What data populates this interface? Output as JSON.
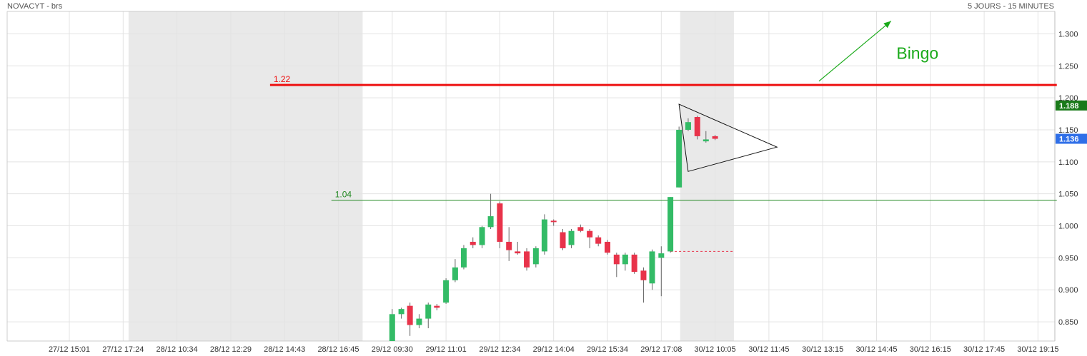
{
  "header": {
    "instrument": "NOVACYT - brs",
    "period": "5 JOURS - 15 MINUTES"
  },
  "colors": {
    "up": "#33bb66",
    "down": "#e8334a",
    "grid": "#e3e3e3",
    "session_shade": "#e9e9e9",
    "resistance": "#ee1111",
    "support": "#228822",
    "bingo": "#1aaa1a",
    "last_badge": "#2f6fe8",
    "ref_badge": "#1a7a1a",
    "triangle": "#111111"
  },
  "chart_data": {
    "type": "candlestick",
    "y_axis": {
      "min": 0.82,
      "max": 1.335,
      "ticks": [
        "0.850",
        "0.900",
        "0.950",
        "1.000",
        "1.050",
        "1.100",
        "1.150",
        "1.200",
        "1.250",
        "1.300"
      ]
    },
    "x_axis": {
      "tick_labels": [
        "27/12 15:01",
        "27/12 17:24",
        "28/12 10:34",
        "28/12 12:29",
        "28/12 14:43",
        "28/12 16:45",
        "29/12 09:30",
        "29/12 11:01",
        "29/12 12:34",
        "29/12 14:04",
        "29/12 15:34",
        "29/12 17:08",
        "30/12 10:05",
        "30/12 11:45",
        "30/12 13:15",
        "30/12 14:45",
        "30/12 16:15",
        "30/12 17:45",
        "30/12 19:15"
      ],
      "slot_count": 19,
      "shaded_sessions": [
        [
          1.1,
          5.45
        ],
        [
          11.35,
          12.35
        ]
      ]
    },
    "candles": [
      {
        "slot": 6.0,
        "open": 0.82,
        "high": 0.87,
        "low": 0.82,
        "close": 0.862
      },
      {
        "slot": 6.17,
        "open": 0.862,
        "high": 0.872,
        "low": 0.855,
        "close": 0.87
      },
      {
        "slot": 6.33,
        "open": 0.875,
        "high": 0.88,
        "low": 0.828,
        "close": 0.845
      },
      {
        "slot": 6.5,
        "open": 0.845,
        "high": 0.862,
        "low": 0.84,
        "close": 0.855
      },
      {
        "slot": 6.67,
        "open": 0.855,
        "high": 0.88,
        "low": 0.84,
        "close": 0.877
      },
      {
        "slot": 6.83,
        "open": 0.875,
        "high": 0.878,
        "low": 0.868,
        "close": 0.872
      },
      {
        "slot": 7.0,
        "open": 0.88,
        "high": 0.918,
        "low": 0.878,
        "close": 0.915
      },
      {
        "slot": 7.17,
        "open": 0.915,
        "high": 0.948,
        "low": 0.912,
        "close": 0.935
      },
      {
        "slot": 7.33,
        "open": 0.935,
        "high": 0.97,
        "low": 0.932,
        "close": 0.965
      },
      {
        "slot": 7.5,
        "open": 0.975,
        "high": 0.982,
        "low": 0.965,
        "close": 0.97
      },
      {
        "slot": 7.67,
        "open": 0.97,
        "high": 1.0,
        "low": 0.965,
        "close": 0.998
      },
      {
        "slot": 7.83,
        "open": 0.998,
        "high": 1.05,
        "low": 0.995,
        "close": 1.015
      },
      {
        "slot": 8.0,
        "open": 1.035,
        "high": 1.038,
        "low": 0.965,
        "close": 0.975
      },
      {
        "slot": 8.17,
        "open": 0.975,
        "high": 0.998,
        "low": 0.945,
        "close": 0.962
      },
      {
        "slot": 8.33,
        "open": 0.96,
        "high": 0.975,
        "low": 0.955,
        "close": 0.957
      },
      {
        "slot": 8.5,
        "open": 0.96,
        "high": 0.965,
        "low": 0.93,
        "close": 0.935
      },
      {
        "slot": 8.67,
        "open": 0.94,
        "high": 0.968,
        "low": 0.935,
        "close": 0.965
      },
      {
        "slot": 8.83,
        "open": 0.96,
        "high": 1.018,
        "low": 0.955,
        "close": 1.01
      },
      {
        "slot": 9.0,
        "open": 1.008,
        "high": 1.01,
        "low": 1.0,
        "close": 1.006
      },
      {
        "slot": 9.17,
        "open": 0.99,
        "high": 0.995,
        "low": 0.962,
        "close": 0.965
      },
      {
        "slot": 9.33,
        "open": 0.97,
        "high": 0.995,
        "low": 0.965,
        "close": 0.992
      },
      {
        "slot": 9.5,
        "open": 0.998,
        "high": 1.002,
        "low": 0.99,
        "close": 0.992
      },
      {
        "slot": 9.67,
        "open": 0.992,
        "high": 0.995,
        "low": 0.965,
        "close": 0.982
      },
      {
        "slot": 9.83,
        "open": 0.982,
        "high": 0.985,
        "low": 0.968,
        "close": 0.972
      },
      {
        "slot": 10.0,
        "open": 0.975,
        "high": 0.978,
        "low": 0.955,
        "close": 0.958
      },
      {
        "slot": 10.17,
        "open": 0.955,
        "high": 0.958,
        "low": 0.92,
        "close": 0.94
      },
      {
        "slot": 10.33,
        "open": 0.94,
        "high": 0.958,
        "low": 0.93,
        "close": 0.955
      },
      {
        "slot": 10.5,
        "open": 0.955,
        "high": 0.958,
        "low": 0.925,
        "close": 0.928
      },
      {
        "slot": 10.67,
        "open": 0.93,
        "high": 0.935,
        "low": 0.88,
        "close": 0.915
      },
      {
        "slot": 10.83,
        "open": 0.91,
        "high": 0.963,
        "low": 0.9,
        "close": 0.96
      },
      {
        "slot": 11.0,
        "open": 0.95,
        "high": 0.968,
        "low": 0.89,
        "close": 0.957
      },
      {
        "slot": 11.17,
        "open": 0.96,
        "high": 1.045,
        "low": 0.958,
        "close": 1.045
      },
      {
        "slot": 11.33,
        "open": 1.06,
        "high": 1.155,
        "low": 1.06,
        "close": 1.15
      },
      {
        "slot": 11.5,
        "open": 1.15,
        "high": 1.168,
        "low": 1.148,
        "close": 1.162
      },
      {
        "slot": 11.67,
        "open": 1.17,
        "high": 1.172,
        "low": 1.135,
        "close": 1.14
      },
      {
        "slot": 11.83,
        "open": 1.132,
        "high": 1.148,
        "low": 1.13,
        "close": 1.135
      },
      {
        "slot": 12.0,
        "open": 1.14,
        "high": 1.142,
        "low": 1.134,
        "close": 1.136
      }
    ],
    "levels": [
      {
        "value": 1.22,
        "label": "1.22",
        "from_slot": 3.73,
        "to_slot": 18.35,
        "kind": "resistance"
      },
      {
        "value": 1.04,
        "label": "1.04",
        "from_slot": 4.87,
        "to_slot": 18.35,
        "kind": "support"
      }
    ],
    "dashed_reference": {
      "value": 0.96,
      "from_slot": 11.17,
      "to_slot": 12.35
    },
    "triangle": [
      [
        11.33,
        1.19
      ],
      [
        11.5,
        1.085
      ],
      [
        13.15,
        1.123
      ]
    ],
    "arrow": {
      "from": [
        13.93,
        1.226
      ],
      "to": [
        15.27,
        1.32
      ]
    },
    "annotation": {
      "text": "Bingo",
      "slot": 15.37,
      "value": 1.27
    },
    "badges": [
      {
        "value": 1.188,
        "label": "1.188",
        "kind": "reference"
      },
      {
        "value": 1.136,
        "label": "1.136",
        "kind": "last"
      }
    ]
  }
}
